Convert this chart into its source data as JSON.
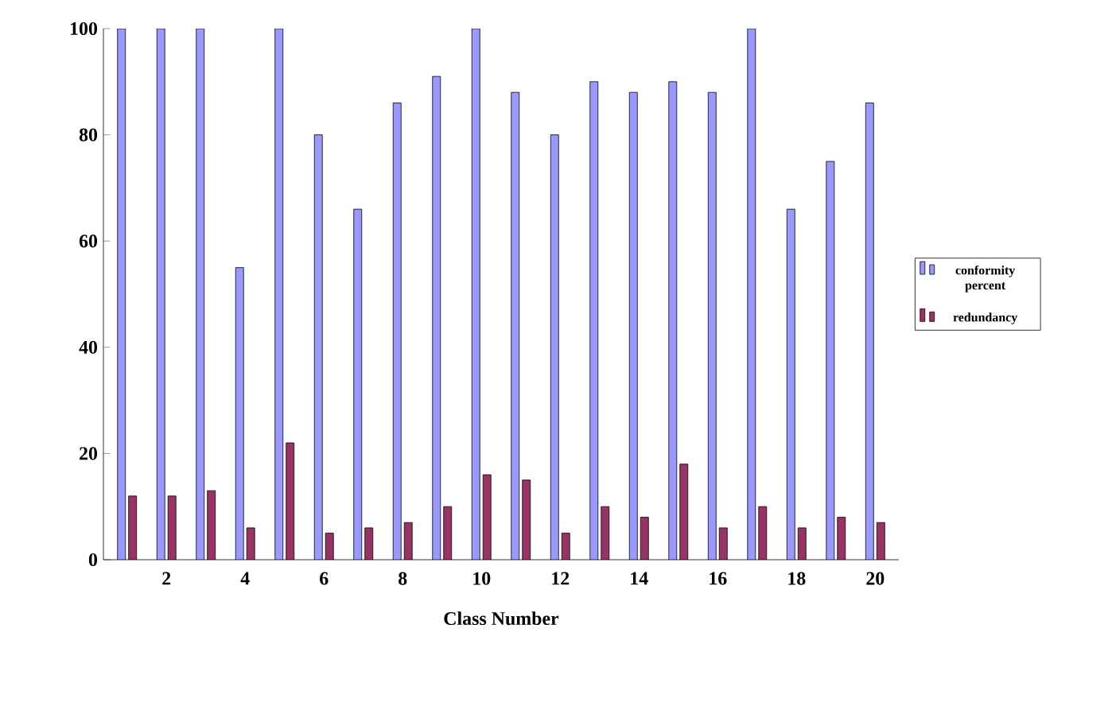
{
  "chart_data": {
    "type": "bar",
    "xlabel": "Class Number",
    "categories": [
      null,
      "2",
      null,
      "4",
      null,
      "6",
      null,
      "8",
      null,
      "10",
      null,
      "12",
      null,
      "14",
      null,
      "16",
      null,
      "18",
      null,
      "20"
    ],
    "series": [
      {
        "name": "conformity percent",
        "color": "#9999ff",
        "values": [
          100,
          100,
          100,
          55,
          100,
          80,
          66,
          86,
          91,
          100,
          88,
          80,
          90,
          88,
          90,
          88,
          100,
          66,
          75,
          86
        ]
      },
      {
        "name": "redundancy",
        "color": "#993366",
        "values": [
          12,
          12,
          13,
          6,
          22,
          5,
          6,
          7,
          10,
          16,
          15,
          5,
          10,
          8,
          18,
          6,
          10,
          6,
          8,
          7
        ]
      }
    ],
    "ylim": [
      0,
      100
    ],
    "yticks": [
      0,
      20,
      40,
      60,
      80,
      100
    ],
    "grid": false,
    "legend": "right"
  }
}
